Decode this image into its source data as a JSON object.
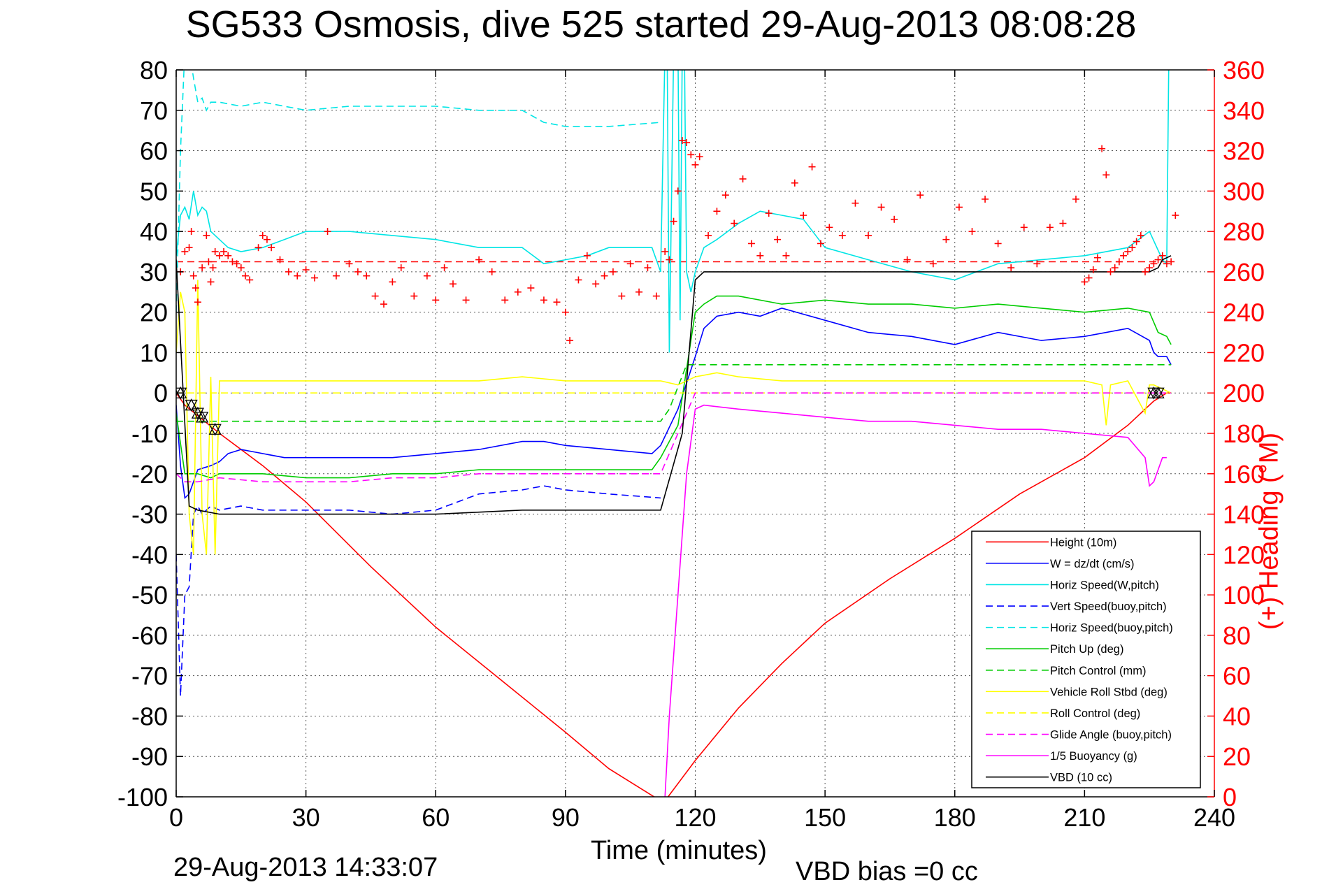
{
  "title": "SG533 Osmosis, dive 525 started 29-Aug-2013 08:08:28",
  "footer_timestamp": "29-Aug-2013 14:33:07",
  "footer_note": "VBD bias =0 cc",
  "colors": {
    "heading": "#ff0000",
    "axis": "#000000",
    "grid": "#555555"
  },
  "chart_data": {
    "type": "line",
    "title": "SG533 Osmosis, dive 525 started 29-Aug-2013 08:08:28",
    "xlabel": "Time (minutes)",
    "ylabel": "",
    "y2label": "(+) Heading (°M)",
    "xlim": [
      0,
      240
    ],
    "ylim": [
      -100,
      80
    ],
    "y2lim": [
      0,
      360
    ],
    "xticks": [
      "0",
      "30",
      "60",
      "90",
      "120",
      "150",
      "180",
      "210",
      "240"
    ],
    "yticks": [
      "80",
      "70",
      "60",
      "50",
      "40",
      "30",
      "20",
      "10",
      "0",
      "-10",
      "-20",
      "-30",
      "-40",
      "-50",
      "-60",
      "-70",
      "-80",
      "-90",
      "-100"
    ],
    "y2ticks": [
      "360",
      "340",
      "320",
      "300",
      "280",
      "260",
      "240",
      "220",
      "200",
      "180",
      "160",
      "140",
      "120",
      "100",
      "80",
      "60",
      "40",
      "20",
      "0"
    ],
    "grid": true,
    "legend_position": "bottom-right",
    "series": [
      {
        "name": "Height (10m)",
        "color": "#ff0000",
        "style": "solid",
        "x": [
          0,
          2,
          10,
          20,
          30,
          45,
          60,
          75,
          90,
          100,
          112,
          113,
          120,
          130,
          140,
          150,
          165,
          180,
          195,
          210,
          220,
          226,
          229,
          230
        ],
        "y": [
          0,
          -3,
          -10,
          -18,
          -27,
          -43,
          -58,
          -71,
          -84,
          -93,
          -101,
          -101,
          -91,
          -78,
          -67,
          -57,
          -46,
          -36,
          -25,
          -16,
          -8,
          -2,
          0,
          0
        ]
      },
      {
        "name": "W = dz/dt (cm/s)",
        "color": "#0000ff",
        "style": "solid",
        "x": [
          0,
          1,
          2,
          3,
          5,
          8,
          10,
          12,
          15,
          20,
          25,
          30,
          40,
          50,
          60,
          70,
          80,
          85,
          90,
          100,
          110,
          112,
          116,
          120,
          122,
          125,
          130,
          135,
          140,
          150,
          160,
          170,
          180,
          190,
          200,
          210,
          220,
          225,
          226,
          227,
          229,
          230
        ],
        "y": [
          -3,
          -18,
          -26,
          -25,
          -19,
          -18,
          -17,
          -15,
          -14,
          -15,
          -16,
          -16,
          -16,
          -16,
          -15,
          -14,
          -12,
          -12,
          -13,
          -14,
          -15,
          -13,
          -4,
          9,
          16,
          19,
          20,
          19,
          21,
          18,
          15,
          14,
          12,
          15,
          13,
          14,
          16,
          13,
          10,
          9,
          9,
          7
        ]
      },
      {
        "name": "Horiz Speed(W,pitch)",
        "color": "#00e5e5",
        "style": "solid",
        "x": [
          0,
          1,
          2,
          3,
          4,
          5,
          6,
          7,
          8,
          10,
          12,
          15,
          20,
          25,
          30,
          40,
          50,
          60,
          70,
          80,
          85,
          90,
          95,
          100,
          110,
          112,
          113,
          113.5,
          114,
          115,
          116,
          116.5,
          117,
          117.5,
          118,
          119,
          120,
          122,
          125,
          130,
          135,
          140,
          145,
          150,
          160,
          170,
          180,
          190,
          200,
          210,
          220,
          225,
          228,
          229,
          229.5,
          230
        ],
        "y": [
          34,
          44,
          46,
          43,
          50,
          44,
          46,
          45,
          40,
          38,
          36,
          35,
          36,
          38,
          40,
          40,
          39,
          38,
          36,
          36,
          32,
          33,
          34,
          36,
          36,
          30,
          85,
          85,
          10,
          85,
          85,
          18,
          85,
          85,
          30,
          25,
          30,
          36,
          38,
          42,
          45,
          44,
          43,
          36,
          33,
          30,
          28,
          32,
          33,
          34,
          36,
          40,
          33,
          32,
          85,
          85
        ]
      },
      {
        "name": "Vert Speed(buoy,pitch)",
        "color": "#0000ff",
        "style": "dashed",
        "x": [
          0,
          1,
          2,
          3,
          4,
          5,
          6,
          8,
          10,
          15,
          20,
          30,
          40,
          50,
          60,
          65,
          70,
          80,
          85,
          90,
          100,
          112
        ],
        "y": [
          -40,
          -75,
          -50,
          -48,
          -30,
          -28,
          -30,
          -28,
          -29,
          -28,
          -29,
          -29,
          -29,
          -30,
          -29,
          -27,
          -25,
          -24,
          -23,
          -24,
          -25,
          -26
        ]
      },
      {
        "name": "Horiz Speed(buoy,pitch)",
        "color": "#00e5e5",
        "style": "dashed",
        "x": [
          0,
          1,
          2,
          3,
          4,
          5,
          6,
          7,
          8,
          10,
          15,
          20,
          30,
          40,
          50,
          60,
          70,
          80,
          85,
          90,
          100,
          112
        ],
        "y": [
          20,
          60,
          85,
          85,
          78,
          72,
          73,
          70,
          72,
          72,
          71,
          72,
          70,
          71,
          71,
          71,
          70,
          70,
          67,
          66,
          66,
          67
        ]
      },
      {
        "name": "Pitch Up (deg)",
        "color": "#00cc00",
        "style": "solid",
        "x": [
          0,
          2,
          5,
          8,
          10,
          20,
          30,
          40,
          50,
          60,
          70,
          80,
          90,
          100,
          110,
          112,
          116,
          120,
          122,
          125,
          130,
          140,
          150,
          160,
          170,
          180,
          190,
          200,
          210,
          220,
          225,
          227,
          229,
          230
        ],
        "y": [
          -5,
          -20,
          -20,
          -21,
          -20,
          -20,
          -21,
          -21,
          -20,
          -20,
          -19,
          -19,
          -19,
          -19,
          -19,
          -16,
          -8,
          20,
          22,
          24,
          24,
          22,
          23,
          22,
          22,
          21,
          22,
          21,
          20,
          21,
          20,
          15,
          14,
          12
        ]
      },
      {
        "name": "Pitch Control (mm)",
        "color": "#00cc00",
        "style": "dashed",
        "x": [
          0,
          1,
          112,
          114,
          118,
          120,
          230
        ],
        "y": [
          -7,
          -7,
          -7,
          -4,
          7,
          7,
          7
        ]
      },
      {
        "name": "Vehicle Roll Stbd (deg)",
        "color": "#ffff00",
        "style": "solid",
        "x": [
          0,
          1,
          2,
          3,
          4,
          5,
          6,
          7,
          8,
          9,
          10,
          20,
          30,
          40,
          50,
          60,
          70,
          80,
          90,
          100,
          112,
          116,
          120,
          125,
          130,
          140,
          150,
          160,
          170,
          180,
          190,
          200,
          210,
          214,
          215,
          216,
          220,
          224,
          225,
          226,
          230
        ],
        "y": [
          10,
          25,
          20,
          -30,
          -40,
          28,
          -30,
          -40,
          4,
          -40,
          3,
          3,
          3,
          3,
          3,
          3,
          3,
          4,
          3,
          3,
          3,
          2,
          4,
          5,
          4,
          3,
          3,
          3,
          3,
          3,
          3,
          3,
          3,
          2,
          -8,
          2,
          3,
          -5,
          2,
          2,
          0
        ]
      },
      {
        "name": "Roll Control (deg)",
        "color": "#ffff00",
        "style": "dashed",
        "x": [
          0,
          230
        ],
        "y": [
          0,
          0
        ]
      },
      {
        "name": "Glide Angle (buoy,pitch)",
        "color": "#ff00ff",
        "style": "dashed",
        "x": [
          0,
          2,
          5,
          10,
          20,
          30,
          40,
          50,
          60,
          70,
          80,
          90,
          100,
          112,
          120,
          230
        ],
        "y": [
          -20,
          -22,
          -22,
          -21,
          -22,
          -22,
          -22,
          -21,
          -21,
          -20,
          -20,
          -20,
          -20,
          -20,
          0,
          0
        ]
      },
      {
        "name": "1/5 Buoyancy (g)",
        "color": "#ff00ff",
        "style": "solid",
        "x": [
          113,
          114,
          118,
          120,
          122,
          130,
          140,
          150,
          160,
          170,
          180,
          190,
          200,
          210,
          220,
          224,
          225,
          226,
          227,
          228,
          229
        ],
        "y": [
          -100,
          -80,
          -20,
          -4,
          -3,
          -4,
          -5,
          -6,
          -7,
          -7,
          -8,
          -9,
          -9,
          -10,
          -11,
          -16,
          -23,
          -22,
          -19,
          -16,
          -16
        ]
      },
      {
        "name": "VBD (10 cc)",
        "color": "#000000",
        "style": "solid",
        "x": [
          0,
          3,
          5,
          10,
          20,
          40,
          60,
          80,
          100,
          112,
          117,
          120,
          122,
          140,
          160,
          180,
          200,
          225,
          227,
          228,
          230
        ],
        "y": [
          33,
          -28,
          -29,
          -30,
          -30,
          -30,
          -30,
          -29,
          -29,
          -29,
          -10,
          28,
          30,
          30,
          30,
          30,
          30,
          30,
          31,
          33,
          34
        ]
      }
    ],
    "reference_line": {
      "name": "Target heading",
      "color": "#ff0000",
      "style": "dashed",
      "heading": 265,
      "x": [
        0,
        230
      ]
    },
    "heading_points": {
      "name": "(+) Heading",
      "color": "#ff0000",
      "x": [
        1,
        2,
        3,
        3.5,
        4,
        4.5,
        5,
        6,
        7,
        7.5,
        8,
        8.5,
        9,
        10,
        11,
        12,
        13,
        14,
        15,
        16,
        17,
        19,
        20,
        21,
        22,
        24,
        26,
        28,
        30,
        32,
        35,
        37,
        40,
        42,
        44,
        46,
        48,
        50,
        52,
        55,
        58,
        60,
        62,
        64,
        67,
        70,
        73,
        76,
        79,
        82,
        85,
        88,
        90,
        91,
        93,
        95,
        97,
        99,
        101,
        103,
        105,
        107,
        109,
        111,
        113,
        114,
        115,
        116,
        117,
        118,
        119,
        120,
        121,
        123,
        125,
        127,
        129,
        131,
        133,
        135,
        137,
        139,
        141,
        143,
        145,
        147,
        149,
        151,
        154,
        157,
        160,
        163,
        166,
        169,
        172,
        175,
        178,
        181,
        184,
        187,
        190,
        193,
        196,
        199,
        202,
        205,
        208,
        210,
        211,
        212,
        213,
        214,
        215,
        216,
        217,
        218,
        219,
        220,
        221,
        222,
        223,
        224,
        225,
        226,
        227,
        228,
        229,
        230,
        231
      ],
      "y": [
        260,
        270,
        272,
        280,
        258,
        252,
        245,
        262,
        278,
        265,
        255,
        262,
        270,
        268,
        270,
        268,
        265,
        264,
        262,
        258,
        256,
        272,
        278,
        276,
        272,
        266,
        260,
        258,
        261,
        257,
        280,
        258,
        264,
        260,
        258,
        248,
        244,
        255,
        262,
        248,
        258,
        246,
        262,
        254,
        246,
        266,
        260,
        246,
        250,
        252,
        246,
        245,
        240,
        226,
        256,
        268,
        254,
        258,
        260,
        248,
        264,
        250,
        262,
        248,
        270,
        266,
        285,
        300,
        325,
        324,
        318,
        313,
        317,
        278,
        290,
        298,
        284,
        306,
        274,
        268,
        289,
        276,
        268,
        304,
        288,
        312,
        274,
        282,
        278,
        294,
        278,
        292,
        286,
        266,
        298,
        264,
        276,
        292,
        280,
        296,
        274,
        262,
        282,
        264,
        282,
        284,
        296,
        255,
        257,
        261,
        267,
        321,
        308,
        260,
        262,
        265,
        268,
        270,
        272,
        275,
        278,
        260,
        262,
        264,
        266,
        268,
        264,
        265,
        288
      ]
    },
    "markers": {
      "name": "Marker",
      "color": "#000000",
      "x": [
        1,
        3.5,
        5,
        6,
        9,
        226,
        227
      ],
      "y": [
        0,
        -3,
        -5,
        -6,
        -9,
        0,
        0
      ]
    },
    "legend": [
      {
        "label": "Height (10m)",
        "color": "#ff0000",
        "style": "solid"
      },
      {
        "label": "W = dz/dt (cm/s)",
        "color": "#0000ff",
        "style": "solid"
      },
      {
        "label": "Horiz Speed(W,pitch)",
        "color": "#00e5e5",
        "style": "solid"
      },
      {
        "label": "Vert Speed(buoy,pitch)",
        "color": "#0000ff",
        "style": "dashed"
      },
      {
        "label": "Horiz Speed(buoy,pitch)",
        "color": "#00e5e5",
        "style": "dashed"
      },
      {
        "label": "Pitch Up (deg)",
        "color": "#00cc00",
        "style": "solid"
      },
      {
        "label": "Pitch Control (mm)",
        "color": "#00cc00",
        "style": "dashed"
      },
      {
        "label": "Vehicle Roll Stbd (deg)",
        "color": "#ffff00",
        "style": "solid"
      },
      {
        "label": "Roll Control (deg)",
        "color": "#ffff00",
        "style": "dashed"
      },
      {
        "label": "Glide Angle (buoy,pitch)",
        "color": "#ff00ff",
        "style": "dashed"
      },
      {
        "label": "1/5 Buoyancy (g)",
        "color": "#ff00ff",
        "style": "solid"
      },
      {
        "label": "VBD (10 cc)",
        "color": "#000000",
        "style": "solid"
      }
    ]
  }
}
